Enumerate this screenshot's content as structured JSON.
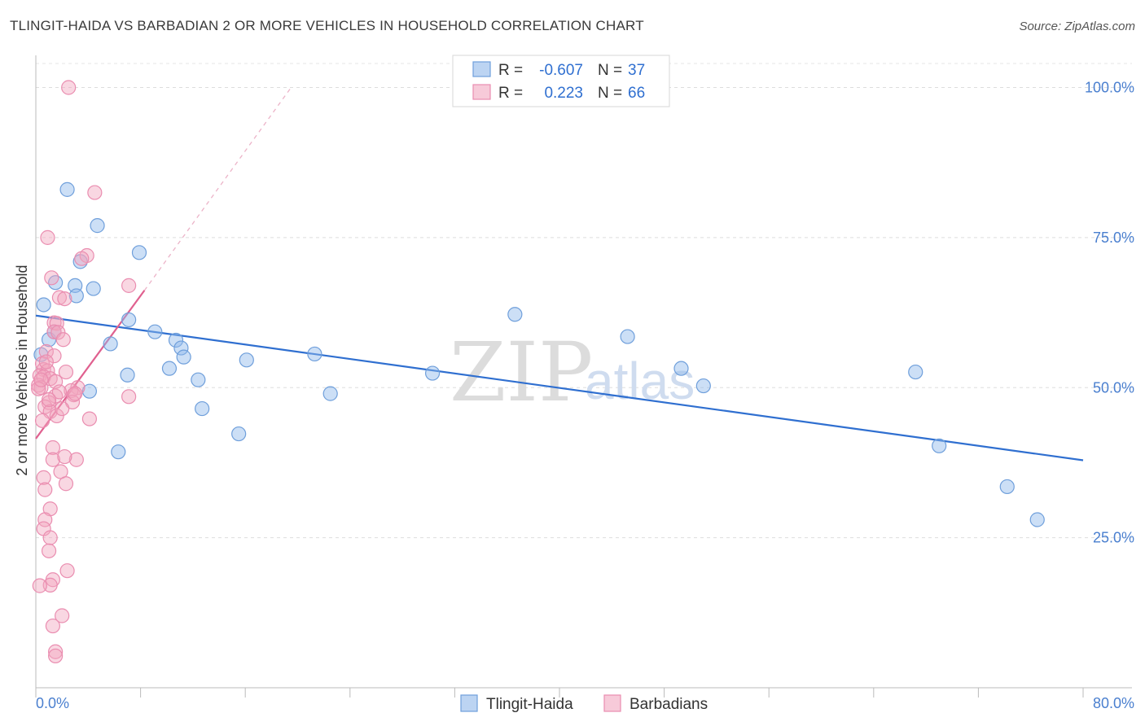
{
  "header": {
    "title": "TLINGIT-HAIDA VS BARBADIAN 2 OR MORE VEHICLES IN HOUSEHOLD CORRELATION CHART",
    "source": "Source: ZipAtlas.com"
  },
  "watermark": {
    "zip": "ZIP",
    "atlas": "atlas"
  },
  "legend": {
    "r_label": "R =",
    "n_label": "N =",
    "rows": [
      {
        "r": "-0.607",
        "n": "37",
        "color": "#8fb8ea"
      },
      {
        "r": "0.223",
        "n": "66",
        "color": "#f2a6bf"
      }
    ]
  },
  "chart_data": {
    "type": "scatter",
    "title": "TLINGIT-HAIDA VS BARBADIAN 2 OR MORE VEHICLES IN HOUSEHOLD CORRELATION CHART",
    "xlabel": "",
    "ylabel": "2 or more Vehicles in Household",
    "xlim": [
      0,
      80
    ],
    "ylim": [
      0,
      104
    ],
    "x_tick_labels": [
      "0.0%",
      "80.0%"
    ],
    "x_minor_ticks": [
      0,
      8,
      16,
      24,
      32,
      40,
      48,
      56,
      64,
      72,
      80
    ],
    "y_ticks": [
      25,
      50,
      75,
      100
    ],
    "y_tick_labels": [
      "25.0%",
      "50.0%",
      "75.0%",
      "100.0%"
    ],
    "grid": true,
    "series": [
      {
        "name": "Tlingit-Haida",
        "color": "#8fb8ea",
        "stroke": "#6f9fdb",
        "trend": {
          "x": [
            0,
            80
          ],
          "y": [
            62.0,
            37.9
          ],
          "color": "#2f6fd0",
          "dash": false
        },
        "points": [
          [
            2.4,
            83.0
          ],
          [
            4.7,
            77.0
          ],
          [
            7.9,
            72.5
          ],
          [
            3.4,
            71.0
          ],
          [
            1.5,
            67.5
          ],
          [
            4.4,
            66.5
          ],
          [
            3.0,
            67.0
          ],
          [
            3.1,
            65.3
          ],
          [
            0.6,
            63.8
          ],
          [
            7.1,
            61.3
          ],
          [
            1.0,
            58.0
          ],
          [
            1.4,
            59.3
          ],
          [
            9.1,
            59.3
          ],
          [
            10.7,
            57.9
          ],
          [
            5.7,
            57.3
          ],
          [
            11.1,
            56.6
          ],
          [
            11.3,
            55.1
          ],
          [
            16.1,
            54.6
          ],
          [
            21.3,
            55.6
          ],
          [
            10.2,
            53.2
          ],
          [
            7.0,
            52.1
          ],
          [
            12.4,
            51.3
          ],
          [
            30.3,
            52.4
          ],
          [
            4.1,
            49.4
          ],
          [
            22.5,
            49.0
          ],
          [
            12.7,
            46.5
          ],
          [
            15.5,
            42.3
          ],
          [
            6.3,
            39.3
          ],
          [
            36.6,
            62.2
          ],
          [
            45.2,
            58.5
          ],
          [
            49.3,
            53.2
          ],
          [
            51.0,
            50.3
          ],
          [
            67.2,
            52.6
          ],
          [
            69.0,
            40.3
          ],
          [
            74.2,
            33.5
          ],
          [
            76.5,
            28.0
          ],
          [
            0.4,
            55.5
          ]
        ]
      },
      {
        "name": "Barbadians",
        "color": "#f2a6bf",
        "stroke": "#ea8db0",
        "trend": {
          "x": [
            0,
            8.3
          ],
          "y": [
            41.5,
            66.2
          ],
          "color": "#e0608f",
          "dash": false
        },
        "trend_extension": {
          "x": [
            8.3,
            19.5
          ],
          "y": [
            66.2,
            100.0
          ],
          "color": "#ecb3c8",
          "dash": true
        },
        "points": [
          [
            2.5,
            100.0
          ],
          [
            4.5,
            82.5
          ],
          [
            0.9,
            75.0
          ],
          [
            3.9,
            72.0
          ],
          [
            3.5,
            71.5
          ],
          [
            1.2,
            68.3
          ],
          [
            7.1,
            67.0
          ],
          [
            1.8,
            65.0
          ],
          [
            2.2,
            64.8
          ],
          [
            1.4,
            60.8
          ],
          [
            1.6,
            60.7
          ],
          [
            1.4,
            59.3
          ],
          [
            1.7,
            59.2
          ],
          [
            2.1,
            58.0
          ],
          [
            0.8,
            56.0
          ],
          [
            1.4,
            55.3
          ],
          [
            0.5,
            54.0
          ],
          [
            0.6,
            53.0
          ],
          [
            0.9,
            52.8
          ],
          [
            2.3,
            52.6
          ],
          [
            0.3,
            52.0
          ],
          [
            0.6,
            51.8
          ],
          [
            1.1,
            51.5
          ],
          [
            1.5,
            51.0
          ],
          [
            0.2,
            50.4
          ],
          [
            0.4,
            50.0
          ],
          [
            3.2,
            50.0
          ],
          [
            2.7,
            49.5
          ],
          [
            0.2,
            49.8
          ],
          [
            1.5,
            48.6
          ],
          [
            7.1,
            48.5
          ],
          [
            2.9,
            48.8
          ],
          [
            2.8,
            47.6
          ],
          [
            1.0,
            47.5
          ],
          [
            0.7,
            46.8
          ],
          [
            1.1,
            46.0
          ],
          [
            1.6,
            45.3
          ],
          [
            4.1,
            44.8
          ],
          [
            0.5,
            44.5
          ],
          [
            1.3,
            40.0
          ],
          [
            1.3,
            38.0
          ],
          [
            3.1,
            38.0
          ],
          [
            2.2,
            38.5
          ],
          [
            1.9,
            36.0
          ],
          [
            0.6,
            35.0
          ],
          [
            2.3,
            34.0
          ],
          [
            0.7,
            33.0
          ],
          [
            1.1,
            29.8
          ],
          [
            0.7,
            28.0
          ],
          [
            0.6,
            26.5
          ],
          [
            1.1,
            25.0
          ],
          [
            1.0,
            22.8
          ],
          [
            2.4,
            19.5
          ],
          [
            1.3,
            18.0
          ],
          [
            1.1,
            17.1
          ],
          [
            0.3,
            17.0
          ],
          [
            2.0,
            12.0
          ],
          [
            1.3,
            10.3
          ],
          [
            1.5,
            6.0
          ],
          [
            1.5,
            5.3
          ],
          [
            3.0,
            49.0
          ],
          [
            1.8,
            49.3
          ],
          [
            0.4,
            51.3
          ],
          [
            1.0,
            48.0
          ],
          [
            2.0,
            46.5
          ],
          [
            0.8,
            54.3
          ]
        ]
      }
    ],
    "legend_position": "bottom-center"
  }
}
